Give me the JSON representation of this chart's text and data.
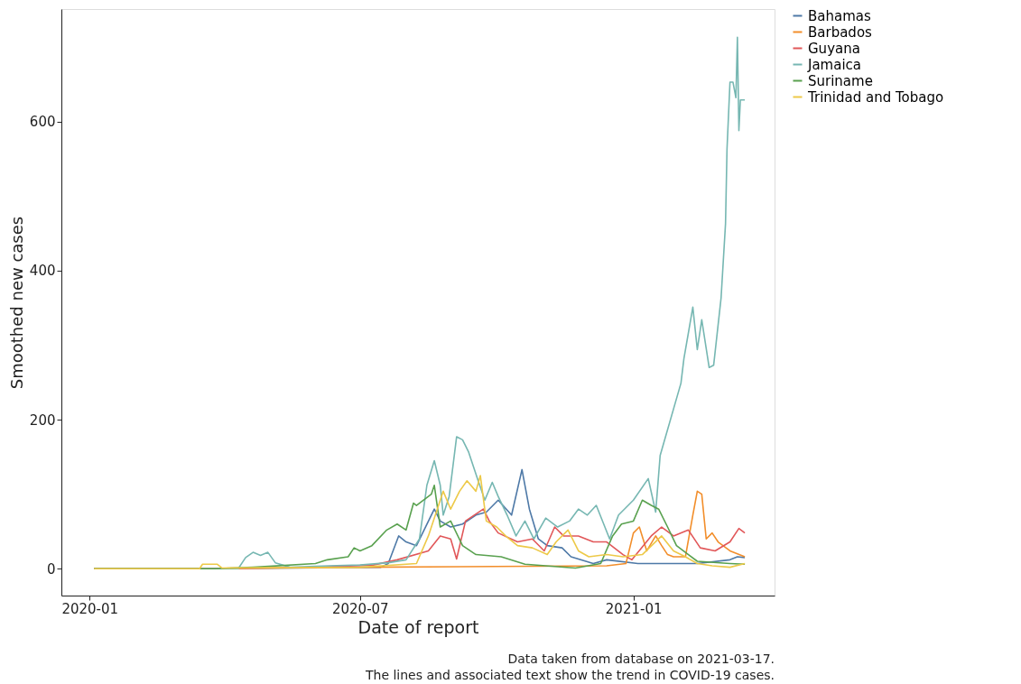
{
  "chart_data": {
    "type": "line",
    "xlabel": "Date of report",
    "ylabel": "Smoothed new cases",
    "annotations": [
      "Data taken from database on 2021-03-17.",
      "The lines and associated text show the trend in COVID-19 cases."
    ],
    "xlim": [
      "2019-12-13",
      "2021-04-06"
    ],
    "xticks": [
      "2020-01",
      "2020-07",
      "2021-01"
    ],
    "ylim": [
      -36,
      751
    ],
    "yticks": [
      0,
      200,
      400,
      600
    ],
    "grid": false,
    "legend": "right",
    "line_style": "solid",
    "series": [
      {
        "name": "Bahamas",
        "color": "#4e79a7",
        "x": [
          "2020-01-04",
          "2020-03-20",
          "2020-07-15",
          "2020-07-20",
          "2020-07-27",
          "2020-08-01",
          "2020-08-08",
          "2020-08-20",
          "2020-08-24",
          "2020-08-31",
          "2020-09-08",
          "2020-09-17",
          "2020-09-24",
          "2020-10-02",
          "2020-10-11",
          "2020-10-18",
          "2020-10-23",
          "2020-10-29",
          "2020-11-04",
          "2020-11-14",
          "2020-11-20",
          "2020-12-05",
          "2020-12-14",
          "2021-01-04",
          "2021-01-24",
          "2021-02-13",
          "2021-03-07",
          "2021-03-12",
          "2021-03-17"
        ],
        "values": [
          0,
          0,
          2,
          7,
          44,
          36,
          31,
          80,
          64,
          56,
          60,
          72,
          76,
          92,
          72,
          133,
          80,
          40,
          31,
          28,
          16,
          7,
          12,
          7,
          7,
          7,
          12,
          16,
          15
        ]
      },
      {
        "name": "Barbados",
        "color": "#f28e2b",
        "x": [
          "2020-01-04",
          "2020-03-20",
          "2020-07-01",
          "2020-12-14",
          "2020-12-27",
          "2021-01-01",
          "2021-01-05",
          "2021-01-10",
          "2021-01-16",
          "2021-01-20",
          "2021-01-24",
          "2021-01-28",
          "2021-02-05",
          "2021-02-10",
          "2021-02-13",
          "2021-02-16",
          "2021-02-19",
          "2021-02-23",
          "2021-02-27",
          "2021-03-07",
          "2021-03-17"
        ],
        "values": [
          0,
          0,
          2,
          4,
          7,
          48,
          56,
          24,
          44,
          31,
          19,
          16,
          16,
          72,
          104,
          100,
          40,
          48,
          36,
          24,
          16
        ]
      },
      {
        "name": "Guyana",
        "color": "#e15759",
        "x": [
          "2020-01-04",
          "2020-03-20",
          "2020-06-01",
          "2020-07-10",
          "2020-07-26",
          "2020-08-16",
          "2020-08-24",
          "2020-08-31",
          "2020-09-04",
          "2020-09-10",
          "2020-09-22",
          "2020-09-26",
          "2020-10-02",
          "2020-10-15",
          "2020-10-25",
          "2020-11-02",
          "2020-11-09",
          "2020-11-15",
          "2020-11-25",
          "2020-12-05",
          "2020-12-14",
          "2020-12-25",
          "2020-12-31",
          "2021-01-13",
          "2021-01-20",
          "2021-01-28",
          "2021-02-07",
          "2021-02-15",
          "2021-02-25",
          "2021-03-07",
          "2021-03-13",
          "2021-03-17"
        ],
        "values": [
          0,
          0,
          2,
          5,
          12,
          24,
          44,
          40,
          13,
          64,
          80,
          64,
          48,
          36,
          40,
          24,
          56,
          44,
          44,
          36,
          36,
          19,
          12,
          44,
          56,
          44,
          52,
          28,
          24,
          36,
          54,
          48
        ]
      },
      {
        "name": "Jamaica",
        "color": "#76b7b2",
        "x": [
          "2020-01-04",
          "2020-04-10",
          "2020-04-15",
          "2020-04-20",
          "2020-04-25",
          "2020-04-30",
          "2020-05-05",
          "2020-05-15",
          "2020-06-10",
          "2020-07-01",
          "2020-07-20",
          "2020-08-01",
          "2020-08-10",
          "2020-08-15",
          "2020-08-20",
          "2020-08-24",
          "2020-08-26",
          "2020-08-30",
          "2020-09-04",
          "2020-09-08",
          "2020-09-12",
          "2020-09-18",
          "2020-09-23",
          "2020-09-28",
          "2020-10-02",
          "2020-10-08",
          "2020-10-14",
          "2020-10-20",
          "2020-10-26",
          "2020-11-03",
          "2020-11-11",
          "2020-11-19",
          "2020-11-25",
          "2020-12-01",
          "2020-12-07",
          "2020-12-16",
          "2020-12-22",
          "2021-01-01",
          "2021-01-11",
          "2021-01-16",
          "2021-01-19",
          "2021-02-02",
          "2021-02-04",
          "2021-02-10",
          "2021-02-13",
          "2021-02-16",
          "2021-02-21",
          "2021-02-24",
          "2021-03-01",
          "2021-03-04",
          "2021-03-05",
          "2021-03-07",
          "2021-03-09",
          "2021-03-11",
          "2021-03-12",
          "2021-03-13",
          "2021-03-14",
          "2021-03-17"
        ],
        "values": [
          0,
          0,
          15,
          22,
          18,
          22,
          8,
          2,
          4,
          5,
          8,
          12,
          40,
          112,
          145,
          112,
          72,
          97,
          177,
          173,
          157,
          121,
          92,
          116,
          97,
          72,
          44,
          64,
          40,
          68,
          56,
          64,
          80,
          72,
          85,
          40,
          72,
          92,
          121,
          76,
          152,
          249,
          282,
          351,
          294,
          334,
          270,
          273,
          363,
          463,
          563,
          653,
          653,
          632,
          713,
          588,
          629,
          629
        ]
      },
      {
        "name": "Suriname",
        "color": "#59a14f",
        "x": [
          "2020-01-04",
          "2020-03-25",
          "2020-04-20",
          "2020-06-01",
          "2020-06-09",
          "2020-06-23",
          "2020-06-27",
          "2020-07-01",
          "2020-07-09",
          "2020-07-19",
          "2020-07-26",
          "2020-08-01",
          "2020-08-06",
          "2020-08-08",
          "2020-08-18",
          "2020-08-20",
          "2020-08-24",
          "2020-08-31",
          "2020-09-08",
          "2020-09-17",
          "2020-10-04",
          "2020-10-20",
          "2020-11-23",
          "2020-12-10",
          "2020-12-18",
          "2020-12-24",
          "2021-01-01",
          "2021-01-07",
          "2021-01-13",
          "2021-01-18",
          "2021-01-24",
          "2021-01-30",
          "2021-02-07",
          "2021-02-13",
          "2021-03-07",
          "2021-03-17"
        ],
        "values": [
          0,
          0,
          2,
          7,
          12,
          16,
          28,
          24,
          31,
          52,
          60,
          52,
          88,
          85,
          100,
          112,
          56,
          64,
          31,
          19,
          16,
          6,
          1,
          7,
          44,
          60,
          64,
          92,
          85,
          80,
          56,
          31,
          19,
          10,
          7,
          6
        ]
      },
      {
        "name": "Trinidad and Tobago",
        "color": "#edc948",
        "x": [
          "2020-01-04",
          "2020-03-15",
          "2020-03-17",
          "2020-03-27",
          "2020-03-30",
          "2020-07-01",
          "2020-08-08",
          "2020-08-16",
          "2020-08-22",
          "2020-08-26",
          "2020-08-31",
          "2020-09-06",
          "2020-09-11",
          "2020-09-17",
          "2020-09-20",
          "2020-09-24",
          "2020-10-01",
          "2020-10-07",
          "2020-10-15",
          "2020-10-25",
          "2020-11-04",
          "2020-11-10",
          "2020-11-18",
          "2020-11-25",
          "2020-12-02",
          "2020-12-14",
          "2020-12-25",
          "2021-01-07",
          "2021-01-20",
          "2021-01-28",
          "2021-02-05",
          "2021-02-13",
          "2021-02-23",
          "2021-03-07",
          "2021-03-17"
        ],
        "values": [
          0,
          0,
          6,
          6,
          1,
          2,
          7,
          44,
          80,
          104,
          80,
          104,
          118,
          104,
          125,
          64,
          56,
          44,
          31,
          28,
          19,
          36,
          52,
          24,
          16,
          19,
          16,
          19,
          44,
          24,
          16,
          7,
          4,
          2,
          7
        ]
      }
    ]
  }
}
